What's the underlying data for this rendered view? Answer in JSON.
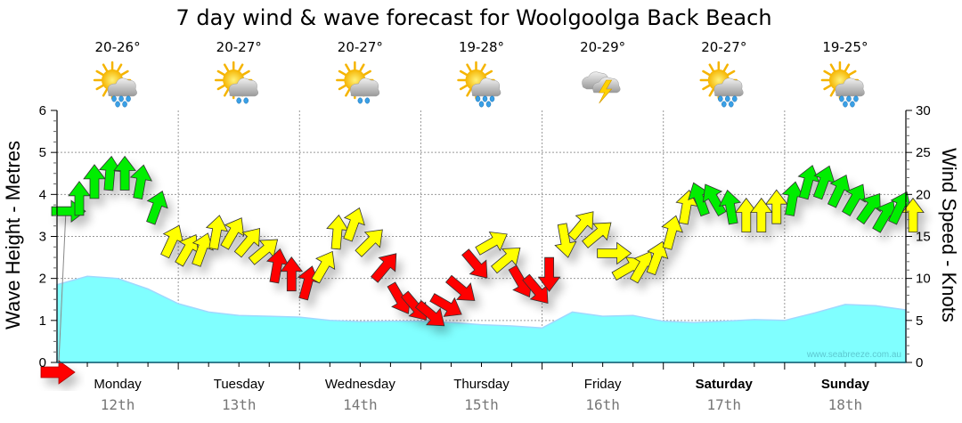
{
  "chart_data": {
    "type": "area",
    "title": "7 day wind & wave forecast for Woolgoolga Back Beach",
    "ylabel_left": "Wave Height - Metres",
    "ylabel_right": "Wind Speed - Knots",
    "ylim_left": [
      0,
      6
    ],
    "ylim_right": [
      0,
      30
    ],
    "yticks_left": [
      "0",
      "1",
      "2",
      "3",
      "4",
      "5",
      "6"
    ],
    "yticks_right": [
      "0",
      "5",
      "10",
      "15",
      "20",
      "25",
      "30"
    ],
    "grid": true,
    "watermark": "www.seabreeze.com.au",
    "days": [
      {
        "name": "Monday",
        "date": "12th",
        "temp": "20-26°",
        "icon": "sun-cloud-rain-icon",
        "bold": false
      },
      {
        "name": "Tuesday",
        "date": "13th",
        "temp": "20-27°",
        "icon": "sun-cloud-showers-icon",
        "bold": false
      },
      {
        "name": "Wednesday",
        "date": "14th",
        "temp": "20-27°",
        "icon": "sun-cloud-showers-icon",
        "bold": false
      },
      {
        "name": "Thursday",
        "date": "15th",
        "temp": "19-28°",
        "icon": "sun-cloud-rain-icon",
        "bold": false
      },
      {
        "name": "Friday",
        "date": "16th",
        "temp": "20-29°",
        "icon": "thunderstorm-icon",
        "bold": false
      },
      {
        "name": "Saturday",
        "date": "17th",
        "temp": "20-27°",
        "icon": "sun-cloud-rain-icon",
        "bold": true
      },
      {
        "name": "Sunday",
        "date": "18th",
        "temp": "19-25°",
        "icon": "sun-cloud-rain-icon",
        "bold": true
      }
    ],
    "wave_series": {
      "name": "Wave Height (m)",
      "color": "#80ffff",
      "x_hours": [
        0,
        6,
        12,
        18,
        24,
        30,
        36,
        42,
        48,
        54,
        60,
        66,
        72,
        78,
        84,
        90,
        96,
        102,
        108,
        114,
        120,
        126,
        132,
        138,
        144,
        150,
        156,
        162,
        168
      ],
      "values": [
        1.85,
        2.05,
        2.0,
        1.75,
        1.4,
        1.2,
        1.12,
        1.1,
        1.08,
        1.0,
        0.97,
        0.98,
        0.98,
        0.95,
        0.9,
        0.87,
        0.82,
        1.2,
        1.1,
        1.12,
        0.98,
        0.95,
        0.98,
        1.02,
        1.0,
        1.18,
        1.38,
        1.35,
        1.25
      ]
    },
    "wind_series": {
      "name": "Wind Speed (knots)",
      "color_scale": {
        "light": "#ffff00",
        "moderate": "#00ee00",
        "strong": "#ff0000"
      },
      "x_hours": [
        0,
        3,
        6,
        9,
        12,
        15,
        18,
        21,
        24,
        27,
        30,
        33,
        36,
        39,
        42,
        45,
        48,
        51,
        54,
        57,
        60,
        63,
        66,
        69,
        72,
        75,
        78,
        81,
        84,
        87,
        90,
        93,
        96,
        99,
        102,
        105,
        108,
        111,
        114,
        117,
        120,
        123,
        126,
        129,
        132,
        135,
        138,
        141,
        144,
        147,
        150,
        153,
        156,
        159,
        162,
        165,
        168
      ],
      "values": [
        18,
        19,
        21,
        22,
        22,
        21,
        18,
        14,
        13,
        13,
        15,
        15,
        14,
        13,
        11,
        10,
        9,
        11,
        15,
        16,
        14,
        11,
        8,
        7,
        6,
        7,
        9,
        12,
        14,
        12,
        10,
        9,
        11,
        15,
        16,
        15,
        13,
        11,
        11,
        12,
        15,
        18,
        19,
        19,
        18,
        17,
        17,
        18,
        19,
        21,
        21,
        20,
        19,
        18,
        17,
        18,
        17
      ],
      "directions_deg": [
        90,
        0,
        0,
        5,
        0,
        10,
        20,
        25,
        30,
        20,
        10,
        30,
        40,
        50,
        10,
        0,
        15,
        30,
        5,
        20,
        45,
        40,
        150,
        140,
        130,
        120,
        130,
        140,
        60,
        50,
        150,
        140,
        180,
        170,
        40,
        50,
        90,
        60,
        30,
        20,
        15,
        10,
        -20,
        -30,
        -10,
        0,
        0,
        0,
        10,
        15,
        20,
        25,
        30,
        35,
        30,
        25,
        0
      ],
      "category": [
        "moderate",
        "moderate",
        "moderate",
        "moderate",
        "moderate",
        "moderate",
        "moderate",
        "light",
        "light",
        "light",
        "light",
        "light",
        "light",
        "light",
        "strong",
        "strong",
        "strong",
        "light",
        "light",
        "light",
        "light",
        "strong",
        "strong",
        "strong",
        "strong",
        "strong",
        "strong",
        "strong",
        "light",
        "light",
        "strong",
        "strong",
        "strong",
        "light",
        "light",
        "light",
        "light",
        "light",
        "light",
        "light",
        "light",
        "light",
        "moderate",
        "moderate",
        "moderate",
        "light",
        "light",
        "light",
        "moderate",
        "moderate",
        "moderate",
        "moderate",
        "moderate",
        "moderate",
        "moderate",
        "moderate",
        "light"
      ]
    },
    "current_marker": {
      "wave_height": 0,
      "wind_direction": "east-arrow"
    }
  }
}
